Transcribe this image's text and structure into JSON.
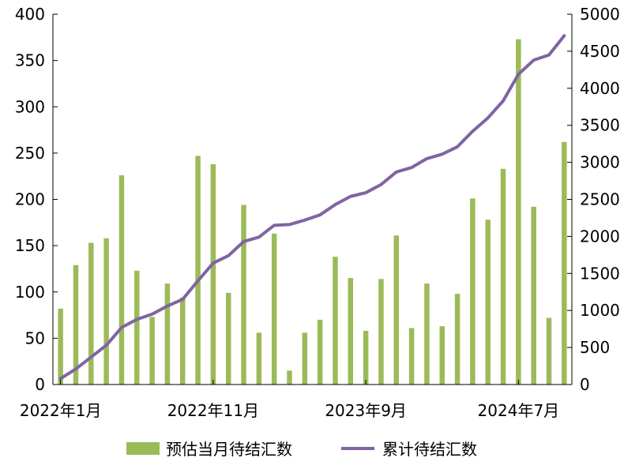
{
  "chart_data": {
    "type": "bar+line",
    "x": [
      "2022年1月",
      "2022年2月",
      "2022年3月",
      "2022年4月",
      "2022年5月",
      "2022年6月",
      "2022年7月",
      "2022年8月",
      "2022年9月",
      "2022年10月",
      "2022年11月",
      "2022年12月",
      "2023年1月",
      "2023年2月",
      "2023年3月",
      "2023年4月",
      "2023年5月",
      "2023年6月",
      "2023年7月",
      "2023年8月",
      "2023年9月",
      "2023年10月",
      "2023年11月",
      "2023年12月",
      "2024年1月",
      "2024年2月",
      "2024年3月",
      "2024年4月",
      "2024年5月",
      "2024年6月",
      "2024年7月",
      "2024年8月",
      "2024年9月",
      "2024年10月"
    ],
    "x_tick_labels": [
      "2022年1月",
      "2022年11月",
      "2023年9月",
      "2024年7月"
    ],
    "series": [
      {
        "name": "预估当月待结汇数",
        "type": "bar",
        "axis": "left",
        "color": "#9BBB59",
        "values": [
          82,
          129,
          153,
          158,
          226,
          123,
          73,
          109,
          94,
          247,
          238,
          99,
          194,
          56,
          163,
          15,
          56,
          70,
          138,
          115,
          58,
          114,
          161,
          61,
          109,
          63,
          98,
          201,
          178,
          233,
          373,
          192,
          72,
          262
        ]
      },
      {
        "name": "累计待结汇数",
        "type": "line",
        "axis": "right",
        "color": "#8064A2",
        "values": [
          80,
          210,
          370,
          530,
          770,
          880,
          950,
          1060,
          1150,
          1400,
          1640,
          1740,
          1930,
          1990,
          2150,
          2160,
          2220,
          2290,
          2430,
          2540,
          2590,
          2700,
          2870,
          2930,
          3050,
          3110,
          3210,
          3420,
          3600,
          3830,
          4190,
          4380,
          4450,
          4710
        ]
      }
    ],
    "y_left": {
      "min": 0,
      "max": 400,
      "ticks": [
        0,
        50,
        100,
        150,
        200,
        250,
        300,
        350,
        400
      ]
    },
    "y_right": {
      "min": 0,
      "max": 5000,
      "ticks": [
        0,
        500,
        1000,
        1500,
        2000,
        2500,
        3000,
        3500,
        4000,
        4500,
        5000
      ]
    },
    "grid": false,
    "legend_position": "bottom"
  }
}
